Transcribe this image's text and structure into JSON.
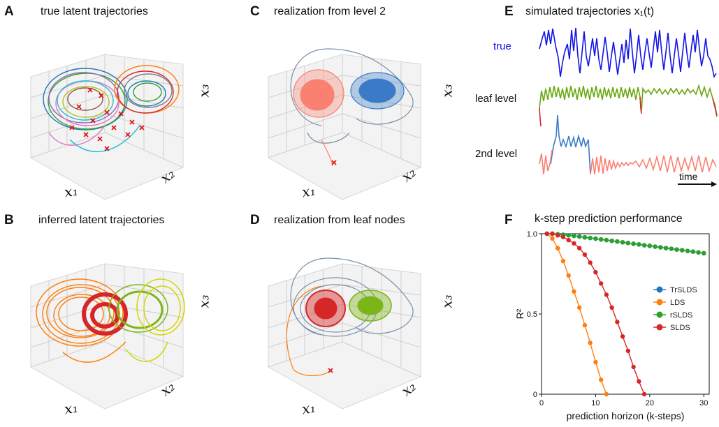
{
  "panels": {
    "A": {
      "letter": "A",
      "title": "true latent trajectories"
    },
    "B": {
      "letter": "B",
      "title": "inferred latent trajectories"
    },
    "C": {
      "letter": "C",
      "title": "realization from level 2"
    },
    "D": {
      "letter": "D",
      "title": "realization from leaf nodes"
    },
    "E": {
      "letter": "E",
      "title": "simulated trajectories x₁(t)"
    },
    "F": {
      "letter": "F",
      "title": "k-step prediction performance"
    }
  },
  "axes3d": {
    "x1": "x₁",
    "x2": "x₂",
    "x3": "x₃"
  },
  "traces": {
    "true": "true",
    "leaf": "leaf level",
    "second": "2nd level",
    "time": "time"
  },
  "chart_data": {
    "type": "line",
    "title": "k-step prediction performance",
    "xlabel": "prediction horizon (k-steps)",
    "ylabel": "R²",
    "xlim": [
      0,
      31
    ],
    "ylim": [
      0,
      1.0
    ],
    "xticks": [
      0,
      10,
      20,
      30
    ],
    "yticks": [
      0,
      0.5,
      1.0
    ],
    "ytick_labels": [
      "0",
      "0.5",
      "1.0"
    ],
    "legend_position": "center-right",
    "grid": false,
    "series": [
      {
        "name": "TrSLDS",
        "color": "#1f77b4",
        "x": [
          1,
          2,
          3,
          4,
          5,
          6,
          7,
          8,
          9,
          10,
          11,
          12,
          13,
          14,
          15,
          16,
          17,
          18,
          19,
          20,
          21,
          22,
          23,
          24,
          25,
          26,
          27,
          28,
          29,
          30
        ],
        "y": [
          1.0,
          1.0,
          0.996,
          0.993,
          0.99,
          0.986,
          0.982,
          0.977,
          0.973,
          0.969,
          0.964,
          0.96,
          0.955,
          0.951,
          0.946,
          0.942,
          0.937,
          0.933,
          0.928,
          0.924,
          0.919,
          0.915,
          0.91,
          0.906,
          0.901,
          0.897,
          0.892,
          0.888,
          0.883,
          0.878
        ]
      },
      {
        "name": "LDS",
        "color": "#ff7f0e",
        "x": [
          1,
          2,
          3,
          4,
          5,
          6,
          7,
          8,
          9,
          10,
          11,
          12
        ],
        "y": [
          1.0,
          0.97,
          0.91,
          0.83,
          0.74,
          0.64,
          0.54,
          0.43,
          0.32,
          0.2,
          0.09,
          0.0
        ]
      },
      {
        "name": "rSLDS",
        "color": "#2ca02c",
        "x": [
          1,
          2,
          3,
          4,
          5,
          6,
          7,
          8,
          9,
          10,
          11,
          12,
          13,
          14,
          15,
          16,
          17,
          18,
          19,
          20,
          21,
          22,
          23,
          24,
          25,
          26,
          27,
          28,
          29,
          30
        ],
        "y": [
          1.0,
          1.0,
          0.997,
          0.994,
          0.99,
          0.987,
          0.983,
          0.978,
          0.974,
          0.97,
          0.965,
          0.961,
          0.956,
          0.952,
          0.947,
          0.943,
          0.938,
          0.934,
          0.929,
          0.925,
          0.92,
          0.916,
          0.911,
          0.907,
          0.902,
          0.898,
          0.893,
          0.889,
          0.884,
          0.879
        ]
      },
      {
        "name": "SLDS",
        "color": "#d62728",
        "x": [
          1,
          2,
          3,
          4,
          5,
          6,
          7,
          8,
          9,
          10,
          11,
          12,
          13,
          14,
          15,
          16,
          17,
          18,
          19
        ],
        "y": [
          1.0,
          1.0,
          0.99,
          0.98,
          0.96,
          0.94,
          0.91,
          0.87,
          0.82,
          0.76,
          0.69,
          0.62,
          0.54,
          0.45,
          0.36,
          0.27,
          0.17,
          0.08,
          0.0
        ]
      }
    ]
  }
}
